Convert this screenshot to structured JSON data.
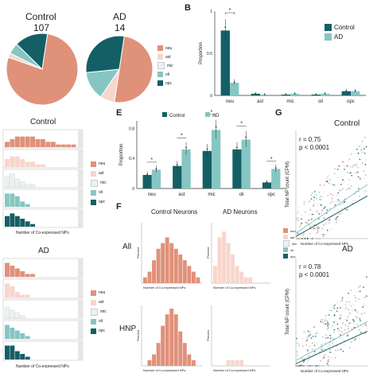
{
  "colors": {
    "neu": "#e0917a",
    "ast": "#f7d6cc",
    "mic": "#eaf2f3",
    "oli": "#86c6c2",
    "opc": "#145f66",
    "control_dark": "#145f66",
    "ad_light": "#86c6c2",
    "white_fill": "#ffffff"
  },
  "panelA": {
    "pies": [
      {
        "title": "Control",
        "count": "107",
        "slices": {
          "neu": 0.78,
          "ast": 0.02,
          "mic": 0.0,
          "oli": 0.05,
          "opc": 0.15
        }
      },
      {
        "title": "AD",
        "count": "14",
        "slices": {
          "neu": 0.5,
          "ast": 0.07,
          "mic": 0.0,
          "oli": 0.14,
          "opc": 0.29
        }
      }
    ],
    "legend": [
      "neu",
      "ast",
      "mic",
      "oli",
      "opc"
    ]
  },
  "panelB": {
    "letter": "B",
    "ylabel": "Proportion",
    "categories": [
      "neu",
      "ast",
      "mic",
      "oli",
      "opc"
    ],
    "legend": [
      "Control",
      "AD"
    ],
    "annotation": "*",
    "chart_data": {
      "type": "bar",
      "categories": [
        "neu",
        "ast",
        "mic",
        "oli",
        "opc"
      ],
      "series": [
        {
          "name": "Control",
          "values": [
            0.77,
            0.02,
            0.01,
            0.01,
            0.05
          ]
        },
        {
          "name": "AD",
          "values": [
            0.15,
            0.01,
            0.02,
            0.02,
            0.05
          ]
        }
      ],
      "ylim": [
        0,
        1.0
      ],
      "ylabel": "Proportion"
    }
  },
  "panelC": {
    "groups": [
      {
        "title": "Control"
      },
      {
        "title": "AD"
      }
    ],
    "xlabel": "Number of Co-expressed NPs",
    "legend": [
      "neu",
      "ast",
      "mic",
      "oli",
      "opc"
    ],
    "histograms": {
      "Control": {
        "neu": [
          2,
          3,
          4,
          4,
          4,
          4,
          3,
          3,
          2,
          2,
          1,
          1,
          1,
          1
        ],
        "ast": [
          3,
          4,
          4,
          3,
          2,
          2,
          1,
          1,
          0,
          0,
          0,
          0,
          0,
          0
        ],
        "mic": [
          4,
          5,
          3,
          2,
          1,
          1,
          0,
          0,
          0,
          0,
          0,
          0,
          0,
          0
        ],
        "oli": [
          5,
          5,
          4,
          2,
          1,
          0,
          0,
          0,
          0,
          0,
          0,
          0,
          0,
          0
        ],
        "opc": [
          4,
          5,
          4,
          3,
          2,
          1,
          0,
          0,
          0,
          0,
          0,
          0,
          0,
          0
        ]
      },
      "AD": {
        "neu": [
          5,
          4,
          3,
          2,
          1,
          1,
          0,
          0,
          0,
          0,
          0,
          0,
          0,
          0
        ],
        "ast": [
          5,
          4,
          2,
          1,
          1,
          0,
          0,
          0,
          0,
          0,
          0,
          0,
          0,
          0
        ],
        "mic": [
          4,
          3,
          2,
          1,
          0,
          0,
          0,
          0,
          0,
          0,
          0,
          0,
          0,
          0
        ],
        "oli": [
          5,
          4,
          3,
          2,
          1,
          0,
          0,
          0,
          0,
          0,
          0,
          0,
          0,
          0
        ],
        "opc": [
          5,
          5,
          3,
          2,
          1,
          0,
          0,
          0,
          0,
          0,
          0,
          0,
          0,
          0
        ]
      }
    }
  },
  "panelE": {
    "letter": "E",
    "ylabel": "Proportion",
    "legend": [
      "Control",
      "AD"
    ],
    "categories": [
      "neu",
      "ast",
      "mic",
      "oli",
      "opc"
    ],
    "annotations": [
      "*",
      "*",
      "*",
      "*",
      "*"
    ],
    "chart_data": {
      "type": "bar",
      "categories": [
        "neu",
        "ast",
        "mic",
        "oli",
        "opc"
      ],
      "series": [
        {
          "name": "Control",
          "values": [
            0.18,
            0.3,
            0.5,
            0.52,
            0.08
          ]
        },
        {
          "name": "AD",
          "values": [
            0.25,
            0.52,
            0.78,
            0.65,
            0.26
          ]
        }
      ],
      "ylim": [
        0,
        0.9
      ],
      "ylabel": "Proportion"
    }
  },
  "panelF": {
    "letter": "F",
    "col_titles": [
      "Control Neurons",
      "AD Neurons"
    ],
    "row_titles": [
      "All",
      "HNP"
    ],
    "ylabel": "Percent",
    "xlabel": "Number of Co-expressed NPs",
    "histograms": {
      "All_Control": [
        1,
        2,
        4,
        6,
        7,
        8,
        7,
        6,
        5,
        4,
        3,
        2,
        1
      ],
      "All_AD": [
        3,
        8,
        9,
        7,
        5,
        3,
        2,
        1,
        1,
        0,
        0,
        0,
        0
      ],
      "HNP_Control": [
        0,
        1,
        2,
        4,
        7,
        9,
        10,
        9,
        6,
        4,
        2,
        1,
        0
      ],
      "HNP_AD": [
        0,
        0,
        0,
        1,
        1,
        1,
        1,
        0,
        0,
        0,
        0,
        0,
        0
      ]
    }
  },
  "panelG": {
    "letter": "G",
    "plots": [
      {
        "title": "Control",
        "ylabel": "Total NP count (CPM)",
        "xlabel": "Number of Co-expressed NPs",
        "r": "r = 0.75",
        "p": "p < 0.0001"
      },
      {
        "title": "AD",
        "ylabel": "Total NP count (CPM)",
        "xlabel": "Number of Co-expressed NPs",
        "r": "r = 0.78",
        "p": "p < 0.0001"
      }
    ],
    "legend": [
      "neu",
      "ast",
      "mic",
      "oli",
      "opc"
    ]
  }
}
